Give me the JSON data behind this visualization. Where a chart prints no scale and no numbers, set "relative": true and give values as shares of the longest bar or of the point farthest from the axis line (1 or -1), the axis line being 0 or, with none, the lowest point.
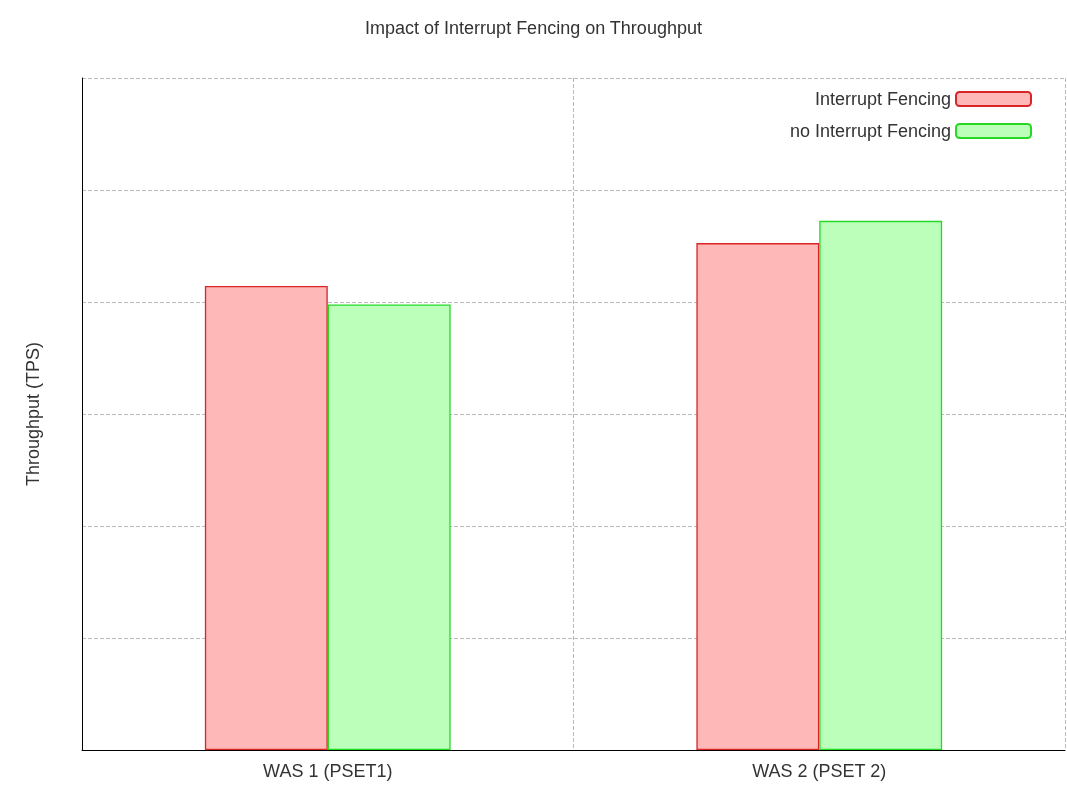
{
  "chart_data": {
    "type": "bar",
    "title": "Impact of Interrupt Fencing on Throughput",
    "ylabel": "Throughput (TPS)",
    "categories": [
      "WAS 1 (PSET1)",
      "WAS 2 (PSET 2)"
    ],
    "relative": true,
    "series": [
      {
        "name": "Interrupt Fencing",
        "color": "#ffb8b8",
        "values": [
          0.877,
          0.958
        ]
      },
      {
        "name": "no Interrupt Fencing",
        "color": "#bbffbb",
        "values": [
          0.842,
          1
        ]
      }
    ],
    "grid": true,
    "legend": "top right"
  }
}
